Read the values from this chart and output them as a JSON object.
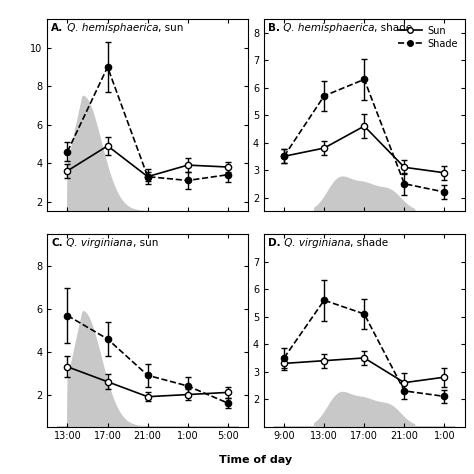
{
  "panel_A": {
    "title_bold": "A.",
    "title_italic": " Q. hemisphaerica",
    "title_normal": ", sun",
    "x": [
      0,
      4,
      8,
      12,
      16
    ],
    "xtick_labels": [
      "13:00",
      "17:00",
      "21:00",
      "1:00",
      "5:00"
    ],
    "sun_y": [
      3.6,
      4.9,
      3.3,
      3.9,
      3.8
    ],
    "sun_err": [
      0.35,
      0.45,
      0.25,
      0.35,
      0.25
    ],
    "shade_y": [
      4.6,
      9.0,
      3.3,
      3.1,
      3.4
    ],
    "shade_err": [
      0.5,
      1.3,
      0.4,
      0.45,
      0.4
    ],
    "ylim": [
      1.5,
      11.5
    ],
    "yticks": [
      2,
      4,
      6,
      8,
      10
    ],
    "bg_type": "sun"
  },
  "panel_B": {
    "title_bold": "B.",
    "title_italic": " Q. hemisphaerica",
    "title_normal": ", shade",
    "x": [
      0,
      4,
      8,
      12,
      16
    ],
    "xtick_labels": [
      "9:00",
      "13:00",
      "17:00",
      "21:00",
      "1:00"
    ],
    "sun_y": [
      3.5,
      3.8,
      4.6,
      3.1,
      2.9
    ],
    "sun_err": [
      0.25,
      0.25,
      0.45,
      0.25,
      0.25
    ],
    "shade_y": [
      3.5,
      5.7,
      6.3,
      2.5,
      2.2
    ],
    "shade_err": [
      0.25,
      0.55,
      0.75,
      0.4,
      0.25
    ],
    "ylim": [
      1.5,
      8.5
    ],
    "yticks": [
      2,
      3,
      4,
      5,
      6,
      7,
      8
    ],
    "bg_type": "shade"
  },
  "panel_C": {
    "title_bold": "C.",
    "title_italic": " Q. virginiana",
    "title_normal": ", sun",
    "x": [
      0,
      4,
      8,
      12,
      16
    ],
    "xtick_labels": [
      "13:00",
      "17:00",
      "21:00",
      "1:00",
      "5:00"
    ],
    "sun_y": [
      3.3,
      2.6,
      1.9,
      2.0,
      2.1
    ],
    "sun_err": [
      0.5,
      0.35,
      0.2,
      0.25,
      0.25
    ],
    "shade_y": [
      5.7,
      4.6,
      2.9,
      2.4,
      1.6
    ],
    "shade_err": [
      1.3,
      0.8,
      0.55,
      0.4,
      0.25
    ],
    "ylim": [
      0.5,
      9.5
    ],
    "yticks": [
      2,
      4,
      6,
      8
    ],
    "bg_type": "sun"
  },
  "panel_D": {
    "title_bold": "D.",
    "title_italic": " Q. virginiana",
    "title_normal": ", shade",
    "x": [
      0,
      4,
      8,
      12,
      16
    ],
    "xtick_labels": [
      "9:00",
      "13:00",
      "17:00",
      "21:00",
      "1:00"
    ],
    "sun_y": [
      3.3,
      3.4,
      3.5,
      2.6,
      2.8
    ],
    "sun_err": [
      0.25,
      0.25,
      0.25,
      0.35,
      0.35
    ],
    "shade_y": [
      3.5,
      5.6,
      5.1,
      2.3,
      2.1
    ],
    "shade_err": [
      0.35,
      0.75,
      0.55,
      0.3,
      0.25
    ],
    "ylim": [
      1.0,
      8.0
    ],
    "yticks": [
      2,
      3,
      4,
      5,
      6,
      7
    ],
    "bg_type": "shade"
  },
  "xlabel": "Time of day",
  "gray_fill": "#c8c8c8",
  "bg_color": "#ffffff",
  "legend_sun": "Sun",
  "legend_shade": "Shade"
}
